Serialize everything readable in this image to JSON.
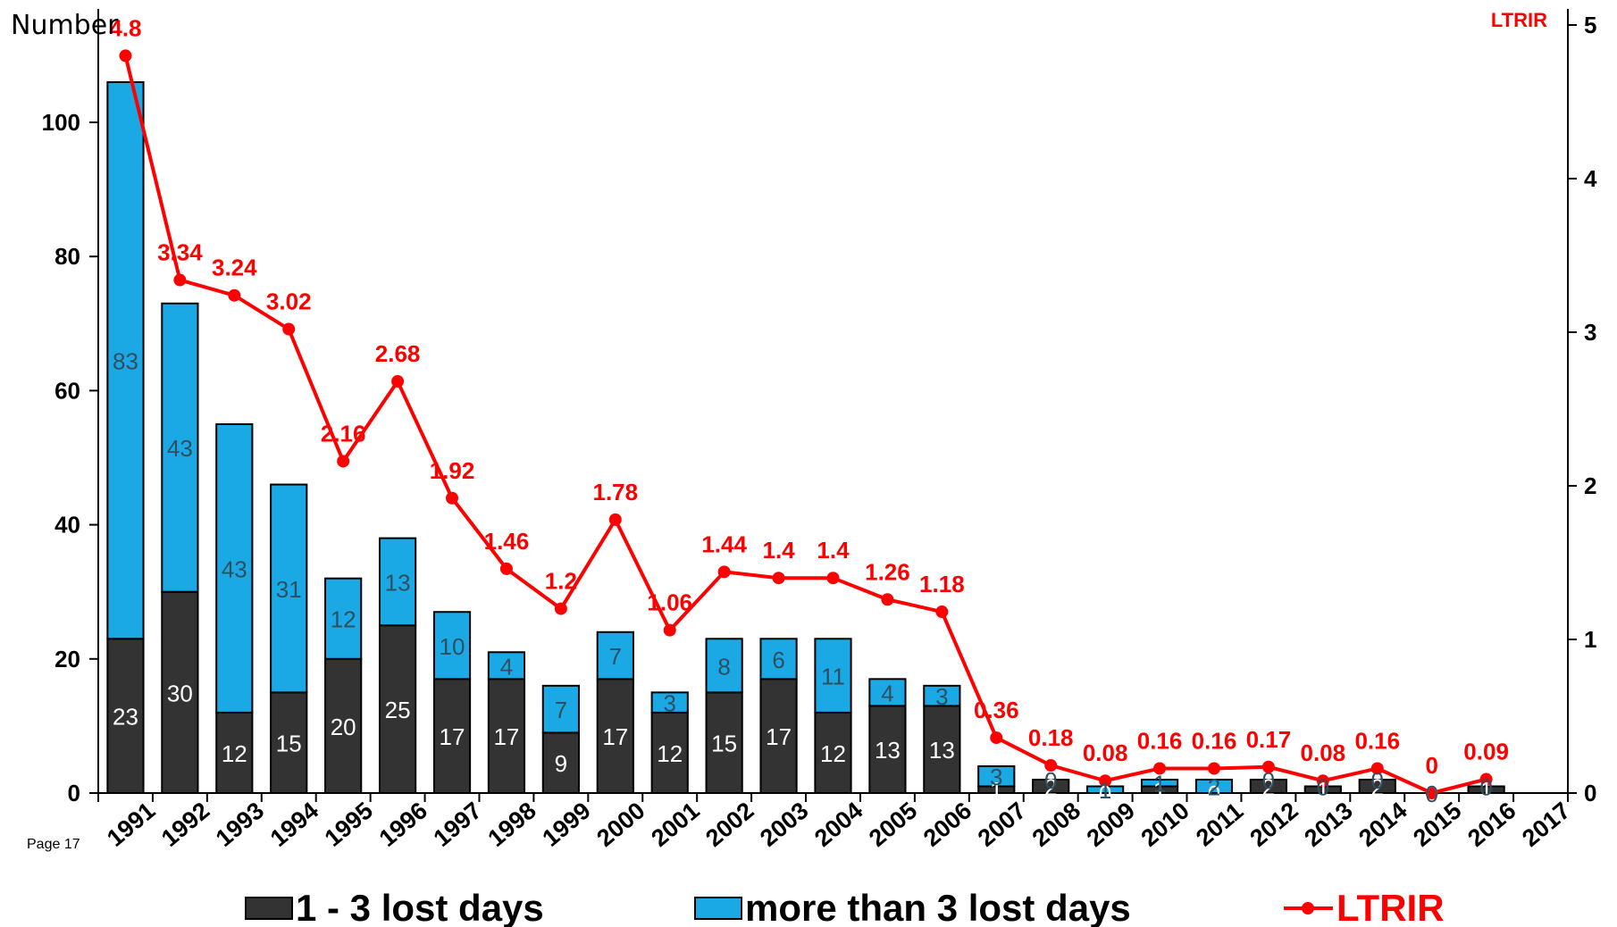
{
  "page_label": "Page 17",
  "chart_data": {
    "type": "bar",
    "stacked": true,
    "ylabel_left": "Number",
    "ylabel_right": "LTRIR",
    "ylim_left": [
      0,
      110
    ],
    "yticks_left": [
      0,
      20,
      40,
      60,
      80,
      100
    ],
    "ylim_right": [
      0,
      5
    ],
    "yticks_right": [
      0,
      1,
      2,
      3,
      4,
      5
    ],
    "categories": [
      "1991",
      "1992",
      "1993",
      "1994",
      "1995",
      "1996",
      "1997",
      "1998",
      "1999",
      "2000",
      "2001",
      "2002",
      "2003",
      "2004",
      "2005",
      "2006",
      "2007",
      "2008",
      "2009",
      "2010",
      "2011",
      "2012",
      "2013",
      "2014",
      "2015",
      "2016",
      "2017"
    ],
    "series": [
      {
        "name": "1 - 3 lost days",
        "color": "#333333",
        "label_color": "#ffffff",
        "axis": "left",
        "values": [
          23,
          30,
          12,
          15,
          20,
          25,
          17,
          17,
          9,
          17,
          12,
          15,
          17,
          12,
          13,
          13,
          1,
          2,
          0,
          1,
          0,
          2,
          1,
          2,
          0,
          1,
          null
        ]
      },
      {
        "name": "more than 3 lost days",
        "color": "#1ba9e6",
        "label_color": "#2f4f60",
        "axis": "left",
        "values": [
          83,
          43,
          43,
          31,
          12,
          13,
          10,
          4,
          7,
          7,
          3,
          8,
          6,
          11,
          4,
          3,
          3,
          0,
          1,
          1,
          2,
          0,
          0,
          0,
          0,
          0,
          null
        ]
      },
      {
        "name": "LTRIR",
        "type": "line",
        "color": "#ff0000",
        "axis": "right",
        "values": [
          4.8,
          3.34,
          3.24,
          3.02,
          2.16,
          2.68,
          1.92,
          1.46,
          1.2,
          1.78,
          1.06,
          1.44,
          1.4,
          1.4,
          1.26,
          1.18,
          0.36,
          0.18,
          0.08,
          0.16,
          0.16,
          0.17,
          0.08,
          0.16,
          0,
          0.09,
          null
        ]
      }
    ],
    "legend_position": "bottom",
    "grid": false
  }
}
